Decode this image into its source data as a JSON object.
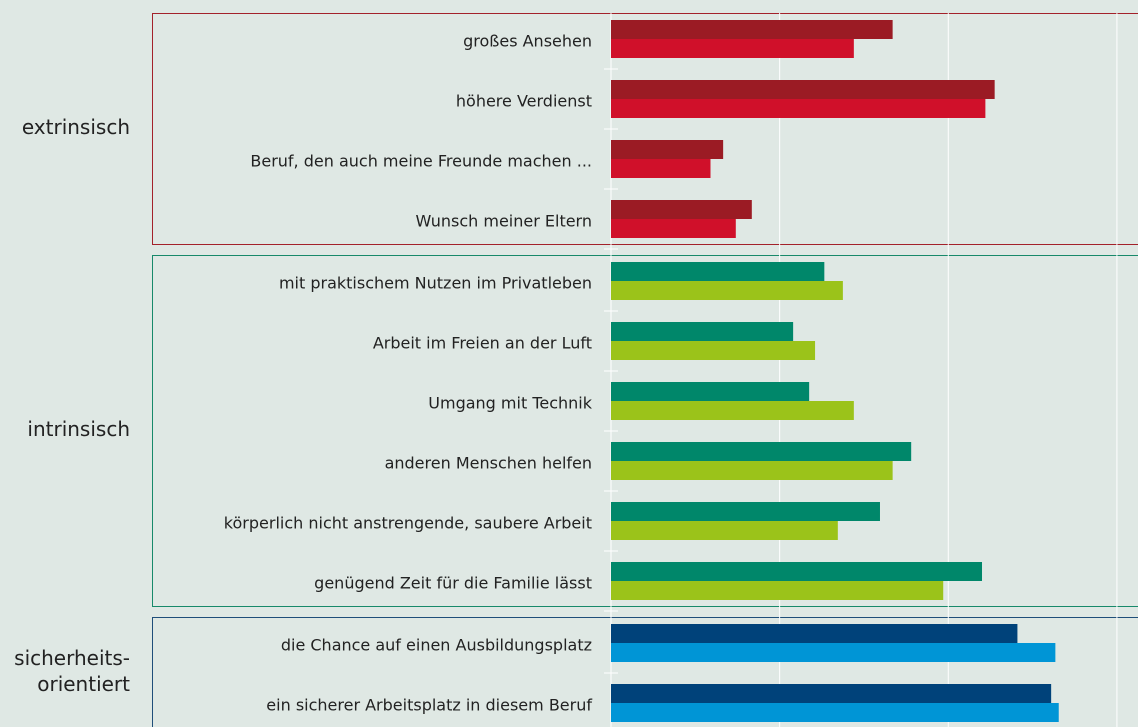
{
  "chart_data": {
    "type": "bar",
    "xlim": [
      0,
      62.5
    ],
    "xgrid": [
      0,
      20,
      40,
      60
    ],
    "grid": true,
    "groups": [
      {
        "label": [
          "extrinsisch"
        ],
        "color": "#a3212a",
        "categories": [
          "großes Ansehen",
          "höhere Verdienst",
          "Beruf, den auch meine Freunde machen ...",
          "Wunsch meiner Eltern"
        ],
        "series": [
          {
            "color": "#9b1b24",
            "values": [
              33.4,
              45.5,
              13.3,
              16.7
            ]
          },
          {
            "color": "#d0102a",
            "values": [
              28.8,
              44.4,
              11.8,
              14.8
            ]
          }
        ]
      },
      {
        "label": [
          "intrinsisch"
        ],
        "color": "#17896a",
        "categories": [
          "mit praktischem Nutzen im Privatleben",
          "Arbeit im Freien an der Luft",
          "Umgang mit Technik",
          "anderen Menschen helfen",
          "körperlich nicht anstrengende, saubere Arbeit",
          "genügend Zeit für die Familie lässt"
        ],
        "series": [
          {
            "color": "#00876a",
            "values": [
              25.3,
              21.6,
              23.5,
              35.6,
              31.9,
              44.0
            ]
          },
          {
            "color": "#9bc31a",
            "values": [
              27.5,
              24.2,
              28.8,
              33.4,
              26.9,
              39.4
            ]
          }
        ]
      },
      {
        "label": [
          "sicherheits-",
          "orientiert"
        ],
        "color": "#1f4e79",
        "categories": [
          "die Chance auf einen Ausbildungsplatz",
          "ein sicherer Arbeitsplatz in diesem Beruf"
        ],
        "series": [
          {
            "color": "#00427a",
            "values": [
              48.2,
              52.2
            ]
          },
          {
            "color": "#0095d6",
            "values": [
              52.7,
              53.1
            ]
          }
        ]
      }
    ]
  }
}
